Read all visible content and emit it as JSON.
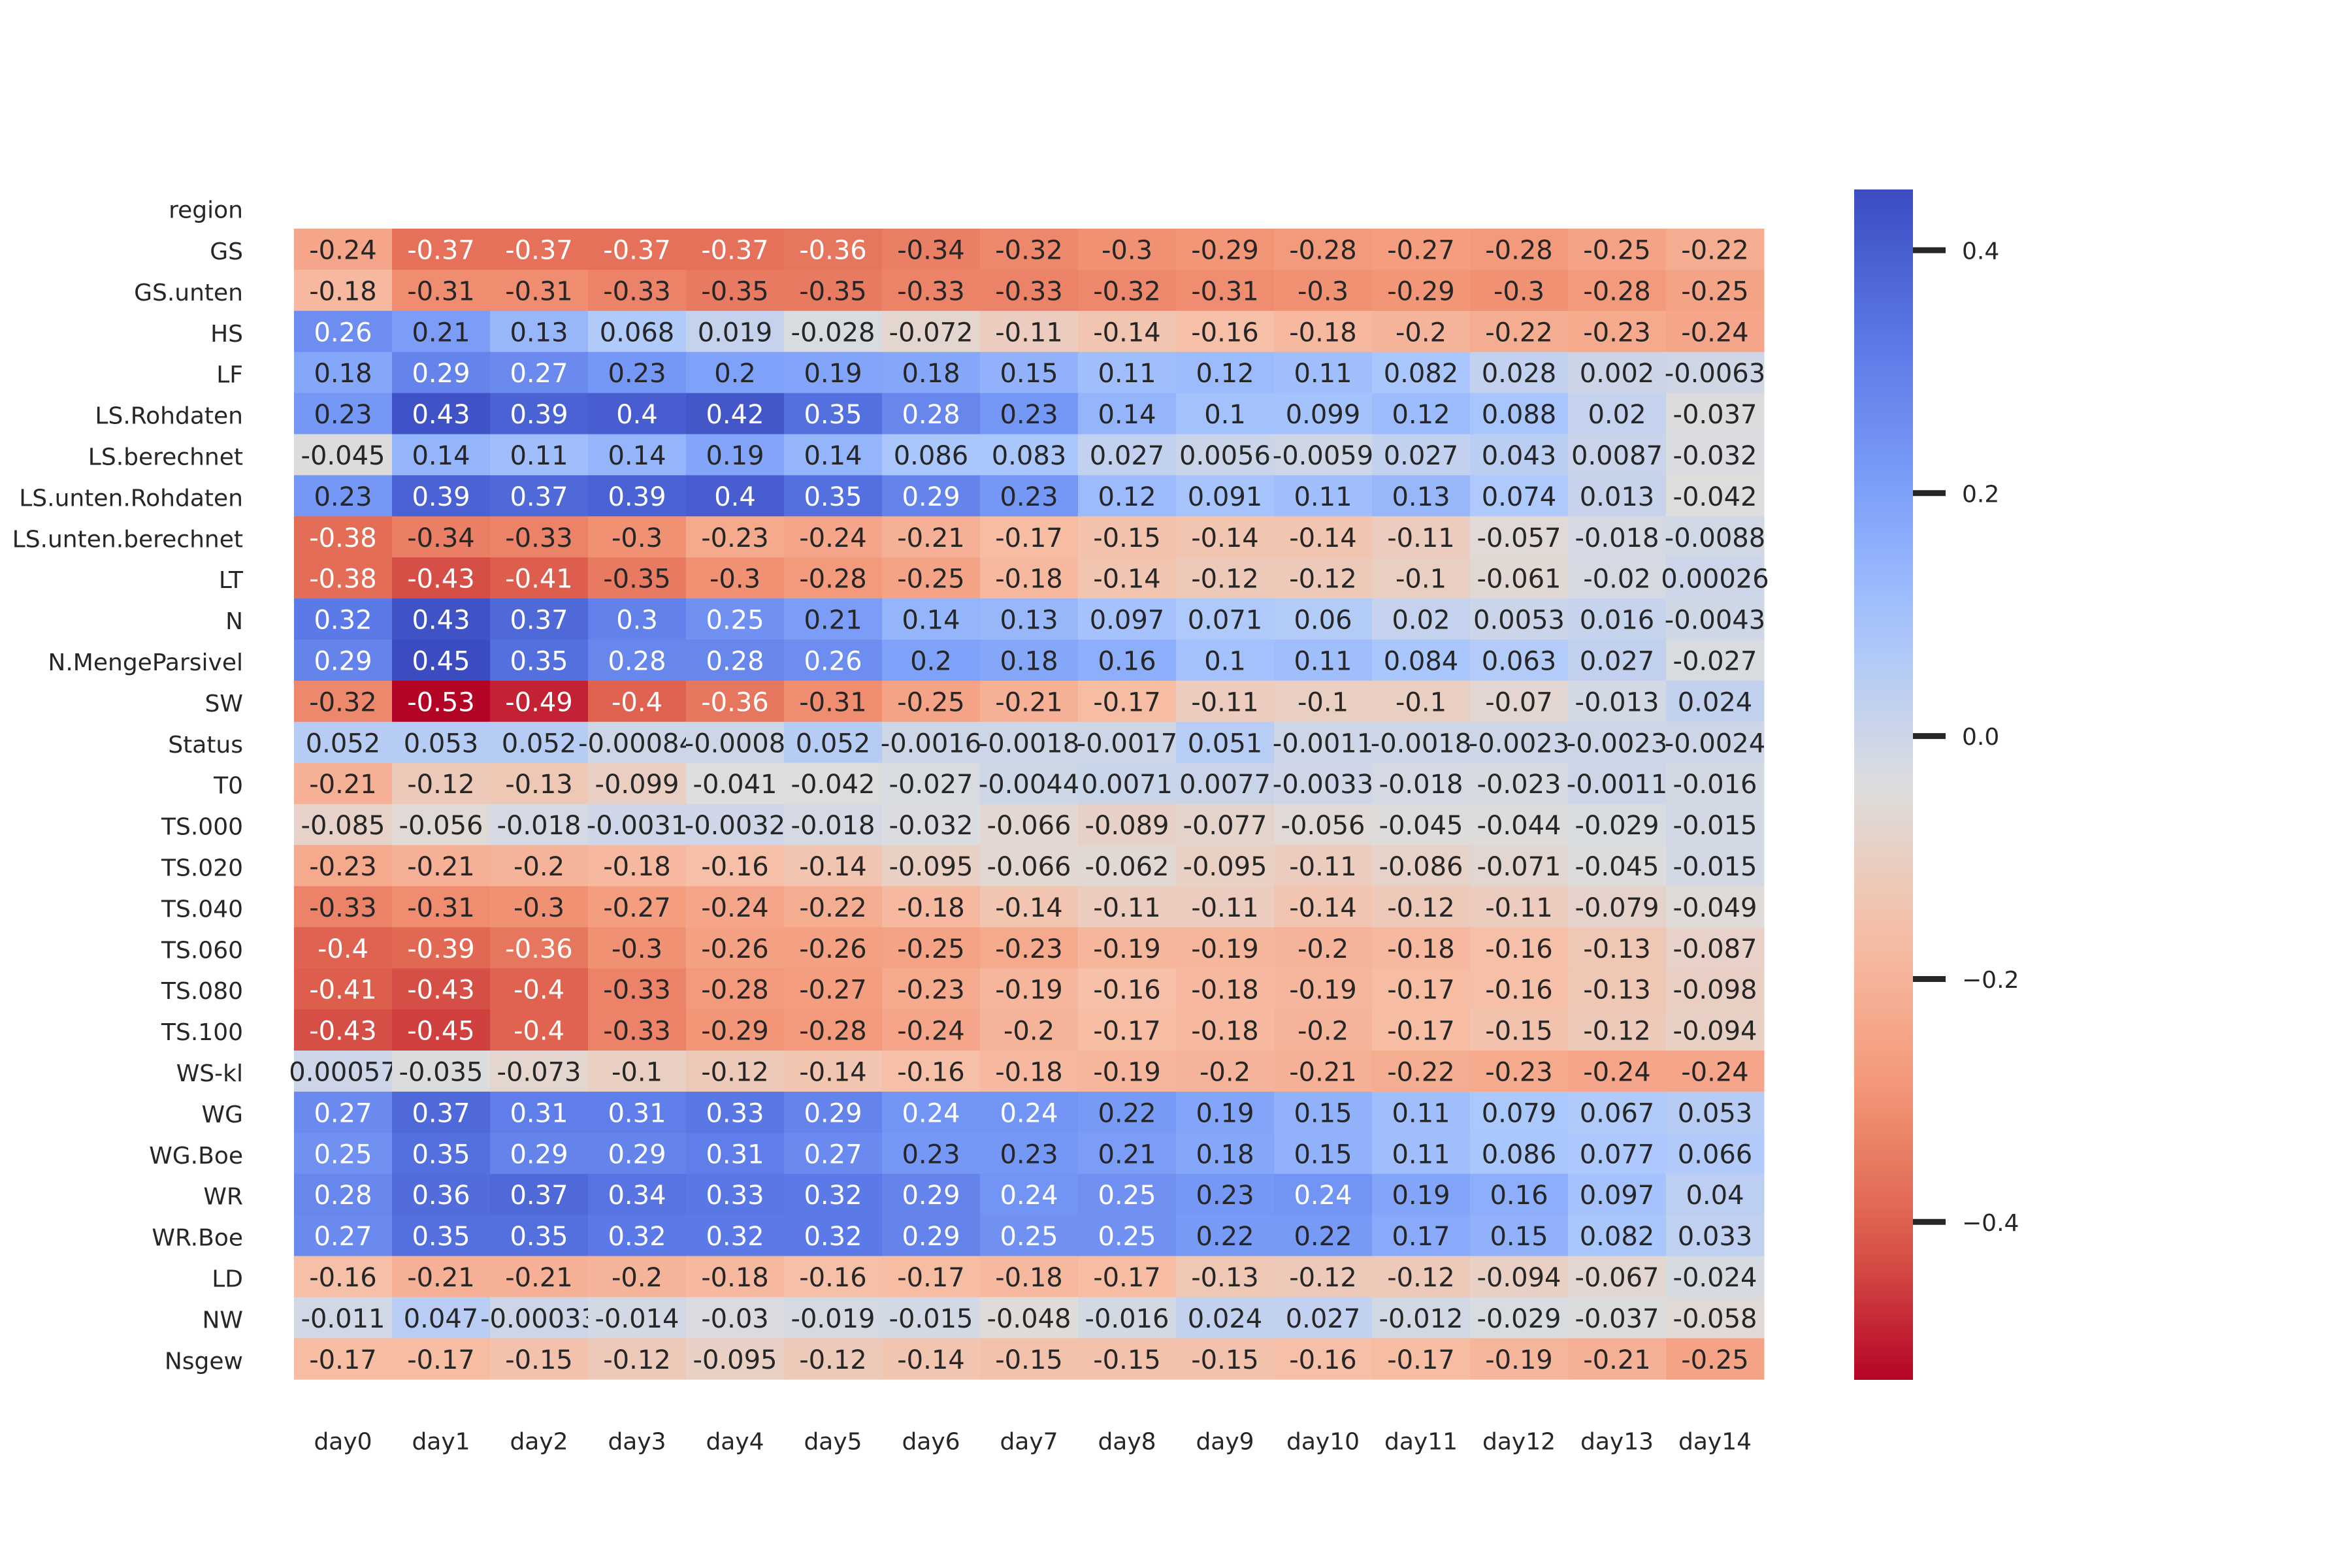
{
  "colors": {
    "low": "#b40426",
    "mid": "#dddddd",
    "high": "#3b4cc0"
  },
  "chart_data": {
    "type": "heatmap",
    "title": "",
    "colormap": "coolwarm",
    "y_header": "region",
    "x_labels": [
      "day0",
      "day1",
      "day2",
      "day3",
      "day4",
      "day5",
      "day6",
      "day7",
      "day8",
      "day9",
      "day10",
      "day11",
      "day12",
      "day13",
      "day14"
    ],
    "rows": [
      {
        "label": "GS",
        "values": [
          "-0.24",
          "-0.37",
          "-0.37",
          "-0.37",
          "-0.37",
          "-0.36",
          "-0.34",
          "-0.32",
          "-0.3",
          "-0.29",
          "-0.28",
          "-0.27",
          "-0.28",
          "-0.25",
          "-0.22"
        ]
      },
      {
        "label": "GS.unten",
        "values": [
          "-0.18",
          "-0.31",
          "-0.31",
          "-0.33",
          "-0.35",
          "-0.35",
          "-0.33",
          "-0.33",
          "-0.32",
          "-0.31",
          "-0.3",
          "-0.29",
          "-0.3",
          "-0.28",
          "-0.25"
        ]
      },
      {
        "label": "HS",
        "values": [
          "0.26",
          "0.21",
          "0.13",
          "0.068",
          "0.019",
          "-0.028",
          "-0.072",
          "-0.11",
          "-0.14",
          "-0.16",
          "-0.18",
          "-0.2",
          "-0.22",
          "-0.23",
          "-0.24"
        ]
      },
      {
        "label": "LF",
        "values": [
          "0.18",
          "0.29",
          "0.27",
          "0.23",
          "0.2",
          "0.19",
          "0.18",
          "0.15",
          "0.11",
          "0.12",
          "0.11",
          "0.082",
          "0.028",
          "0.002",
          "-0.0063"
        ]
      },
      {
        "label": "LS.Rohdaten",
        "values": [
          "0.23",
          "0.43",
          "0.39",
          "0.4",
          "0.42",
          "0.35",
          "0.28",
          "0.23",
          "0.14",
          "0.1",
          "0.099",
          "0.12",
          "0.088",
          "0.02",
          "-0.037"
        ]
      },
      {
        "label": "LS.berechnet",
        "values": [
          "-0.045",
          "0.14",
          "0.11",
          "0.14",
          "0.19",
          "0.14",
          "0.086",
          "0.083",
          "0.027",
          "0.0056",
          "-0.0059",
          "0.027",
          "0.043",
          "0.0087",
          "-0.032"
        ]
      },
      {
        "label": "LS.unten.Rohdaten",
        "values": [
          "0.23",
          "0.39",
          "0.37",
          "0.39",
          "0.4",
          "0.35",
          "0.29",
          "0.23",
          "0.12",
          "0.091",
          "0.11",
          "0.13",
          "0.074",
          "0.013",
          "-0.042"
        ]
      },
      {
        "label": "LS.unten.berechnet",
        "values": [
          "-0.38",
          "-0.34",
          "-0.33",
          "-0.3",
          "-0.23",
          "-0.24",
          "-0.21",
          "-0.17",
          "-0.15",
          "-0.14",
          "-0.14",
          "-0.11",
          "-0.057",
          "-0.018",
          "-0.0088"
        ]
      },
      {
        "label": "LT",
        "values": [
          "-0.38",
          "-0.43",
          "-0.41",
          "-0.35",
          "-0.3",
          "-0.28",
          "-0.25",
          "-0.18",
          "-0.14",
          "-0.12",
          "-0.12",
          "-0.1",
          "-0.061",
          "-0.02",
          "0.00026"
        ]
      },
      {
        "label": "N",
        "values": [
          "0.32",
          "0.43",
          "0.37",
          "0.3",
          "0.25",
          "0.21",
          "0.14",
          "0.13",
          "0.097",
          "0.071",
          "0.06",
          "0.02",
          "0.0053",
          "0.016",
          "-0.0043"
        ]
      },
      {
        "label": "N.MengeParsivel",
        "values": [
          "0.29",
          "0.45",
          "0.35",
          "0.28",
          "0.28",
          "0.26",
          "0.2",
          "0.18",
          "0.16",
          "0.1",
          "0.11",
          "0.084",
          "0.063",
          "0.027",
          "-0.027"
        ]
      },
      {
        "label": "SW",
        "values": [
          "-0.32",
          "-0.53",
          "-0.49",
          "-0.4",
          "-0.36",
          "-0.31",
          "-0.25",
          "-0.21",
          "-0.17",
          "-0.11",
          "-0.1",
          "-0.1",
          "-0.07",
          "-0.013",
          "0.024"
        ]
      },
      {
        "label": "Status",
        "values": [
          "0.052",
          "0.053",
          "0.052",
          "-0.00084",
          "-0.0008",
          "0.052",
          "-0.0016",
          "-0.0018",
          "-0.0017",
          "0.051",
          "-0.0011",
          "-0.0018",
          "-0.0023",
          "-0.0023",
          "-0.0024"
        ]
      },
      {
        "label": "T0",
        "values": [
          "-0.21",
          "-0.12",
          "-0.13",
          "-0.099",
          "-0.041",
          "-0.042",
          "-0.027",
          "-0.0044",
          "0.0071",
          "0.0077",
          "-0.0033",
          "-0.018",
          "-0.023",
          "-0.0011",
          "-0.016"
        ]
      },
      {
        "label": "TS.000",
        "values": [
          "-0.085",
          "-0.056",
          "-0.018",
          "-0.0031",
          "-0.0032",
          "-0.018",
          "-0.032",
          "-0.066",
          "-0.089",
          "-0.077",
          "-0.056",
          "-0.045",
          "-0.044",
          "-0.029",
          "-0.015"
        ]
      },
      {
        "label": "TS.020",
        "values": [
          "-0.23",
          "-0.21",
          "-0.2",
          "-0.18",
          "-0.16",
          "-0.14",
          "-0.095",
          "-0.066",
          "-0.062",
          "-0.095",
          "-0.11",
          "-0.086",
          "-0.071",
          "-0.045",
          "-0.015"
        ]
      },
      {
        "label": "TS.040",
        "values": [
          "-0.33",
          "-0.31",
          "-0.3",
          "-0.27",
          "-0.24",
          "-0.22",
          "-0.18",
          "-0.14",
          "-0.11",
          "-0.11",
          "-0.14",
          "-0.12",
          "-0.11",
          "-0.079",
          "-0.049"
        ]
      },
      {
        "label": "TS.060",
        "values": [
          "-0.4",
          "-0.39",
          "-0.36",
          "-0.3",
          "-0.26",
          "-0.26",
          "-0.25",
          "-0.23",
          "-0.19",
          "-0.19",
          "-0.2",
          "-0.18",
          "-0.16",
          "-0.13",
          "-0.087"
        ]
      },
      {
        "label": "TS.080",
        "values": [
          "-0.41",
          "-0.43",
          "-0.4",
          "-0.33",
          "-0.28",
          "-0.27",
          "-0.23",
          "-0.19",
          "-0.16",
          "-0.18",
          "-0.19",
          "-0.17",
          "-0.16",
          "-0.13",
          "-0.098"
        ]
      },
      {
        "label": "TS.100",
        "values": [
          "-0.43",
          "-0.45",
          "-0.4",
          "-0.33",
          "-0.29",
          "-0.28",
          "-0.24",
          "-0.2",
          "-0.17",
          "-0.18",
          "-0.2",
          "-0.17",
          "-0.15",
          "-0.12",
          "-0.094"
        ]
      },
      {
        "label": "WS-kl",
        "values": [
          "0.00057",
          "-0.035",
          "-0.073",
          "-0.1",
          "-0.12",
          "-0.14",
          "-0.16",
          "-0.18",
          "-0.19",
          "-0.2",
          "-0.21",
          "-0.22",
          "-0.23",
          "-0.24",
          "-0.24"
        ]
      },
      {
        "label": "WG",
        "values": [
          "0.27",
          "0.37",
          "0.31",
          "0.31",
          "0.33",
          "0.29",
          "0.24",
          "0.24",
          "0.22",
          "0.19",
          "0.15",
          "0.11",
          "0.079",
          "0.067",
          "0.053"
        ]
      },
      {
        "label": "WG.Boe",
        "values": [
          "0.25",
          "0.35",
          "0.29",
          "0.29",
          "0.31",
          "0.27",
          "0.23",
          "0.23",
          "0.21",
          "0.18",
          "0.15",
          "0.11",
          "0.086",
          "0.077",
          "0.066"
        ]
      },
      {
        "label": "WR",
        "values": [
          "0.28",
          "0.36",
          "0.37",
          "0.34",
          "0.33",
          "0.32",
          "0.29",
          "0.24",
          "0.25",
          "0.23",
          "0.24",
          "0.19",
          "0.16",
          "0.097",
          "0.04"
        ]
      },
      {
        "label": "WR.Boe",
        "values": [
          "0.27",
          "0.35",
          "0.35",
          "0.32",
          "0.32",
          "0.32",
          "0.29",
          "0.25",
          "0.25",
          "0.22",
          "0.22",
          "0.17",
          "0.15",
          "0.082",
          "0.033"
        ]
      },
      {
        "label": "LD",
        "values": [
          "-0.16",
          "-0.21",
          "-0.21",
          "-0.2",
          "-0.18",
          "-0.16",
          "-0.17",
          "-0.18",
          "-0.17",
          "-0.13",
          "-0.12",
          "-0.12",
          "-0.094",
          "-0.067",
          "-0.024"
        ]
      },
      {
        "label": "NW",
        "values": [
          "-0.011",
          "0.047",
          "-0.00033",
          "-0.014",
          "-0.03",
          "-0.019",
          "-0.015",
          "-0.048",
          "-0.016",
          "0.024",
          "0.027",
          "-0.012",
          "-0.029",
          "-0.037",
          "-0.058"
        ]
      },
      {
        "label": "Nsgew",
        "values": [
          "-0.17",
          "-0.17",
          "-0.15",
          "-0.12",
          "-0.095",
          "-0.12",
          "-0.14",
          "-0.15",
          "-0.15",
          "-0.15",
          "-0.16",
          "-0.17",
          "-0.19",
          "-0.21",
          "-0.25"
        ]
      }
    ],
    "vmin": -0.53,
    "vmax": 0.45,
    "colorbar_ticks": [
      "0.4",
      "0.2",
      "0.0",
      "−0.2",
      "−0.4"
    ]
  }
}
